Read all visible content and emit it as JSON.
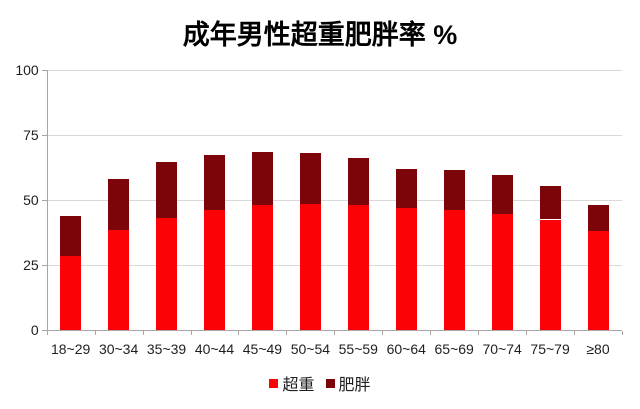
{
  "chart_data": {
    "type": "bar",
    "stacked": true,
    "title": "成年男性超重肥胖率 %",
    "xlabel": "",
    "ylabel": "",
    "categories": [
      "18~29",
      "30~34",
      "35~39",
      "40~44",
      "45~49",
      "50~54",
      "55~59",
      "60~64",
      "65~69",
      "70~74",
      "75~79",
      "≥80"
    ],
    "series": [
      {
        "name": "超重",
        "color": "#FB0306",
        "values": [
          28.5,
          38.5,
          43.0,
          46.0,
          48.0,
          48.5,
          48.0,
          47.0,
          46.0,
          44.5,
          42.5,
          38.0
        ]
      },
      {
        "name": "肥胖",
        "color": "#7B0508",
        "values": [
          15.5,
          19.5,
          21.5,
          21.5,
          20.5,
          19.5,
          18.0,
          15.0,
          15.5,
          15.0,
          13.0,
          10.0
        ]
      }
    ],
    "stack_totals": [
      44.0,
      58.0,
      64.5,
      67.5,
      68.5,
      68.0,
      66.0,
      62.0,
      61.5,
      59.5,
      55.5,
      48.0
    ],
    "ylim": [
      0,
      100
    ],
    "yticks": [
      0,
      25,
      50,
      75,
      100
    ],
    "grid": true,
    "legend_position": "bottom",
    "colors": {
      "background": "#FFFFFF",
      "gridline": "#D9D9D9",
      "axis": "#A6A6A6",
      "text": "#1F1F1F",
      "title_text": "#000000"
    }
  }
}
